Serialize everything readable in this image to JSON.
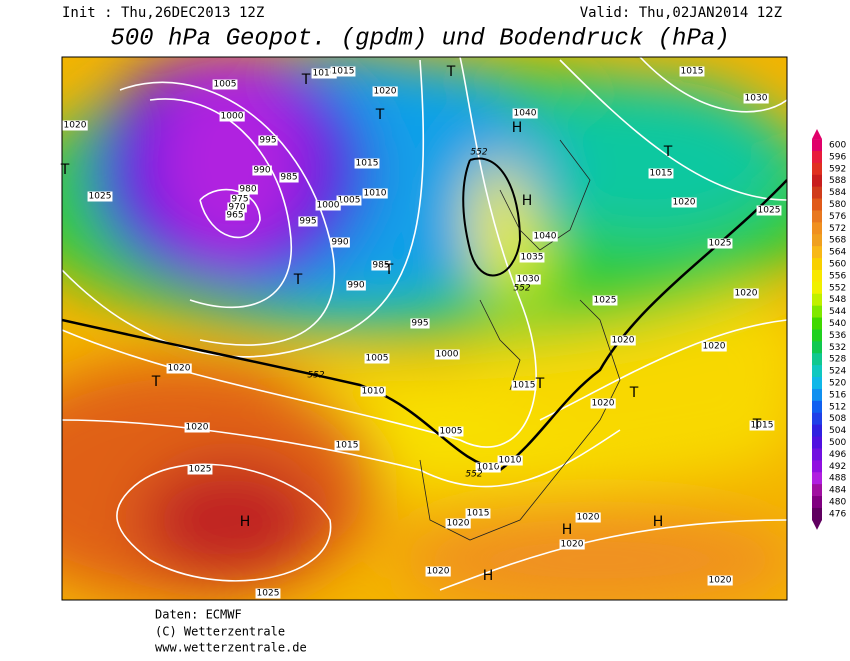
{
  "header": {
    "init": "Init : Thu,26DEC2013 12Z",
    "valid": "Valid: Thu,02JAN2014 12Z",
    "title": "500 hPa Geopot. (gpdm) und Bodendruck (hPa)"
  },
  "isobar_labels": [
    1005,
    1000,
    995,
    990,
    985,
    980,
    975,
    970,
    965,
    1010,
    1015,
    1020,
    1015,
    1010,
    1005,
    1000,
    995,
    990,
    985,
    990,
    995,
    1000,
    1005,
    1010,
    1015,
    1020,
    1020,
    1025,
    1025,
    1020,
    1025,
    1005,
    1010,
    1010,
    1015,
    1020,
    1020,
    1020,
    1020,
    1015,
    1020,
    1020,
    1020,
    1020,
    1025,
    1025,
    1030,
    1035,
    1040,
    1040,
    1015,
    1030,
    1015,
    1020,
    1025,
    1015,
    1020
  ],
  "height_labels": [
    552,
    552,
    552,
    552
  ],
  "pressure_centers": [
    "H",
    "H",
    "H",
    "H",
    "H",
    "H",
    "T",
    "T",
    "T",
    "T",
    "T",
    "T",
    "T",
    "T",
    "T",
    "T",
    "T"
  ],
  "legend": {
    "values": [
      600,
      596,
      592,
      588,
      584,
      580,
      576,
      572,
      568,
      564,
      560,
      556,
      552,
      548,
      544,
      540,
      536,
      532,
      528,
      524,
      520,
      516,
      512,
      508,
      504,
      500,
      496,
      492,
      488,
      484,
      480,
      476
    ],
    "colors": [
      "#e0006a",
      "#e81c3c",
      "#e03020",
      "#c81e1e",
      "#d03c1c",
      "#e05a1a",
      "#e87820",
      "#f09020",
      "#f0a020",
      "#f8b818",
      "#f8d000",
      "#f8e800",
      "#f0f000",
      "#c0f000",
      "#80e800",
      "#40d800",
      "#20d020",
      "#10c850",
      "#10c890",
      "#10c8c0",
      "#10b8e8",
      "#1090f0",
      "#1060f0",
      "#2040e8",
      "#3020e0",
      "#5010e0",
      "#7010e0",
      "#9010e0",
      "#b020e0",
      "#a010a0",
      "#800080",
      "#600060"
    ]
  },
  "footer": [
    "Daten: ECMWF",
    "(C) Wetterzentrale",
    "www.wetterzentrale.de"
  ]
}
